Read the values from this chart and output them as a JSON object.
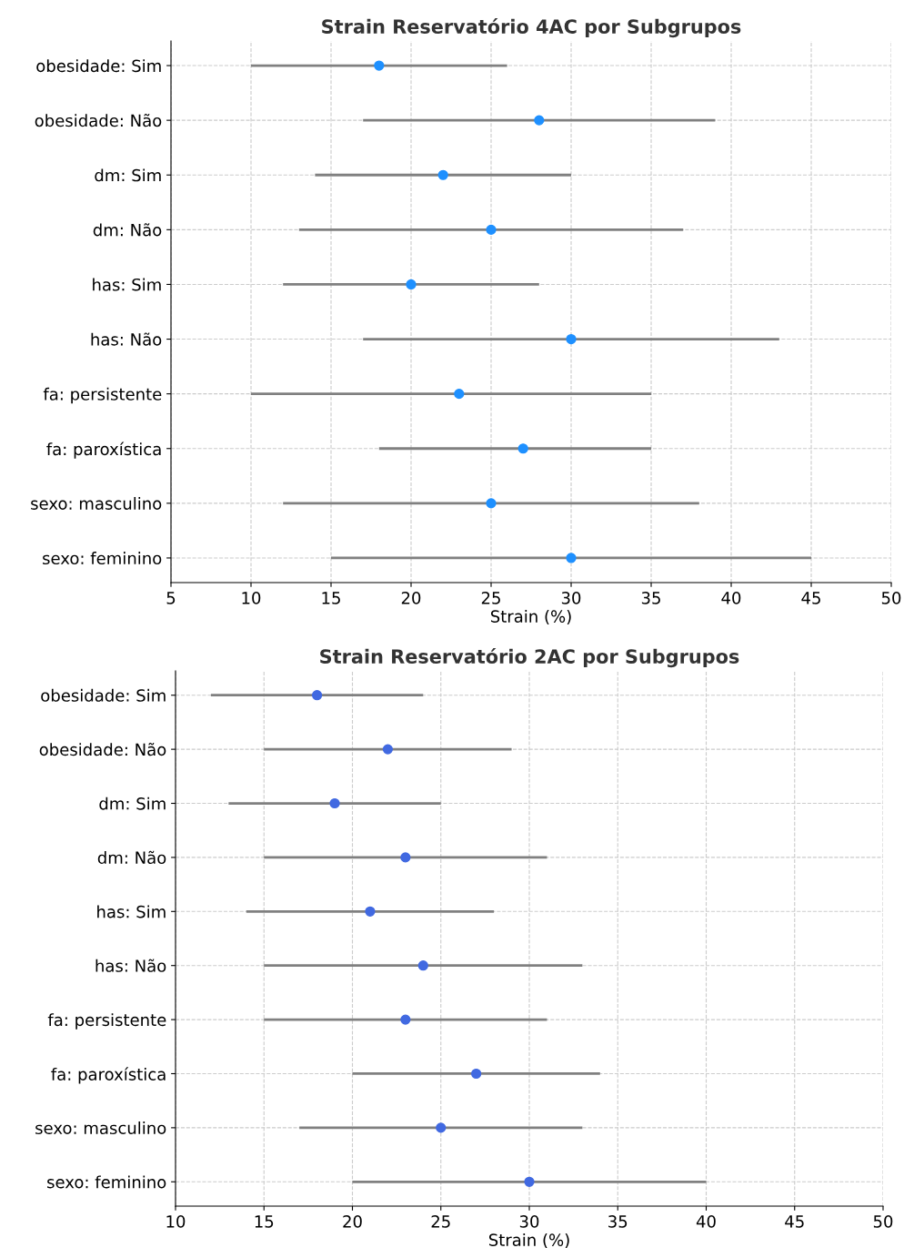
{
  "chart_data": [
    {
      "type": "scatter",
      "orientation": "horizontal",
      "title": "Strain Reservatório 4AC por Subgrupos",
      "xlabel": "Strain (%)",
      "categories": [
        "obesidade: Sim",
        "obesidade: Não",
        "dm: Sim",
        "dm: Não",
        "has: Sim",
        "has: Não",
        "fa: persistente",
        "fa: paroxística",
        "sexo: masculino",
        "sexo: feminino"
      ],
      "values": [
        18,
        28,
        22,
        25,
        20,
        30,
        23,
        27,
        25,
        30
      ],
      "errors": [
        [
          10,
          26
        ],
        [
          17,
          39
        ],
        [
          14,
          30
        ],
        [
          13,
          37
        ],
        [
          12,
          28
        ],
        [
          17,
          43
        ],
        [
          10,
          35
        ],
        [
          18,
          35
        ],
        [
          12,
          38
        ],
        [
          15,
          45
        ]
      ],
      "color": "#1e90ff",
      "marker": "circle",
      "grid": true,
      "xlim": [
        5,
        50
      ],
      "xticks": [
        5,
        10,
        15,
        20,
        25,
        30,
        35,
        40,
        45,
        50
      ]
    },
    {
      "type": "scatter",
      "orientation": "horizontal",
      "title": "Strain Reservatório 2AC por Subgrupos",
      "xlabel": "Strain (%)",
      "categories": [
        "obesidade: Sim",
        "obesidade: Não",
        "dm: Sim",
        "dm: Não",
        "has: Sim",
        "has: Não",
        "fa: persistente",
        "fa: paroxística",
        "sexo: masculino",
        "sexo: feminino"
      ],
      "values": [
        18,
        22,
        19,
        23,
        21,
        24,
        23,
        27,
        25,
        30
      ],
      "errors": [
        [
          12,
          24
        ],
        [
          15,
          29
        ],
        [
          13,
          25
        ],
        [
          15,
          31
        ],
        [
          14,
          28
        ],
        [
          15,
          33
        ],
        [
          15,
          31
        ],
        [
          20,
          34
        ],
        [
          17,
          33
        ],
        [
          20,
          40
        ]
      ],
      "color": "#4169e1",
      "marker": "circle",
      "grid": true,
      "xlim": [
        10,
        50
      ],
      "xticks": [
        10,
        15,
        20,
        25,
        30,
        35,
        40,
        45,
        50
      ]
    }
  ]
}
